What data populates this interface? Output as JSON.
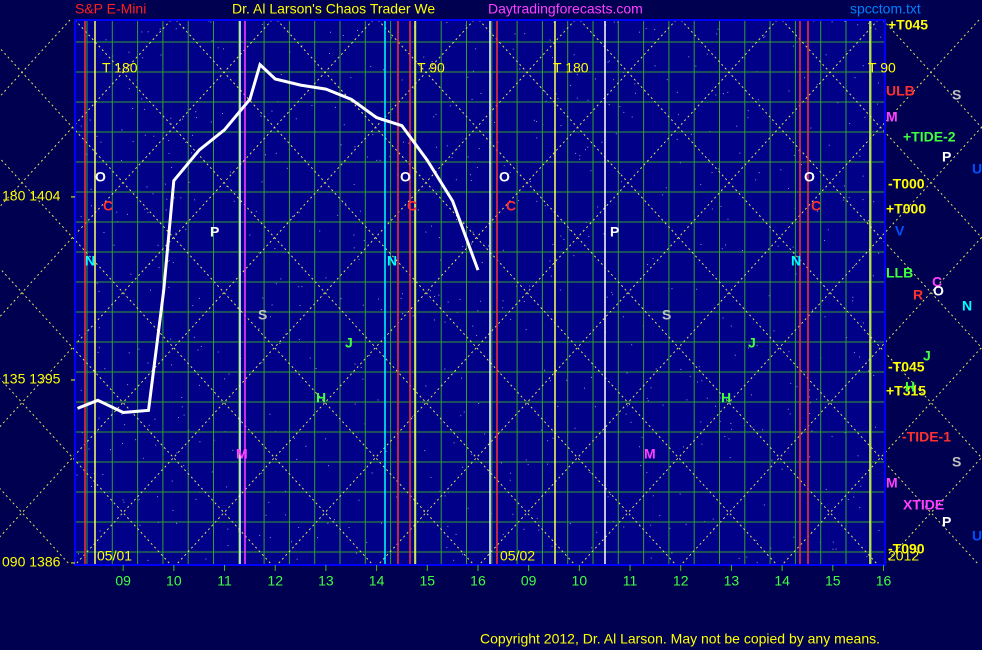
{
  "chart_data": {
    "type": "line",
    "title": "Dr. Al Larson's Chaos Trader We",
    "site": "Daytradingforecasts.com",
    "instrument": "S&P E-Mini",
    "file": "spcctom.txt",
    "copyright": "Copyright 2012, Dr. Al Larson. May not be copied by any means.",
    "year": "2012",
    "days": [
      "05/01",
      "05/02"
    ],
    "x": [
      -0.9,
      -0.5,
      0,
      0.5,
      0.8,
      1.0,
      1.5,
      2.0,
      2.5,
      2.7,
      3.0,
      3.5,
      4.0,
      4.5,
      5.0,
      5.5,
      6.0,
      6.5,
      7.0
    ],
    "values": [
      1393.6,
      1394.0,
      1393.4,
      1393.5,
      1399.4,
      1404.8,
      1406.3,
      1407.3,
      1408.8,
      1410.5,
      1409.8,
      1409.5,
      1409.3,
      1408.8,
      1407.9,
      1407.5,
      1405.8,
      1403.8,
      1400.4
    ],
    "color": "#ffffff",
    "xlim": [
      -0.95,
      15.03
    ],
    "ylim": [
      1385.9,
      1412.7
    ],
    "xticks": [
      {
        "value": 0,
        "label": "09"
      },
      {
        "value": 1,
        "label": "10"
      },
      {
        "value": 2,
        "label": "11"
      },
      {
        "value": 3,
        "label": "12"
      },
      {
        "value": 4,
        "label": "13"
      },
      {
        "value": 5,
        "label": "14"
      },
      {
        "value": 6,
        "label": "15"
      },
      {
        "value": 7,
        "label": "16"
      },
      {
        "value": 8,
        "label": "09"
      },
      {
        "value": 9,
        "label": "10"
      },
      {
        "value": 10,
        "label": "11"
      },
      {
        "value": 11,
        "label": "12"
      },
      {
        "value": 12,
        "label": "13"
      },
      {
        "value": 13,
        "label": "14"
      },
      {
        "value": 14,
        "label": "15"
      },
      {
        "value": 15,
        "label": "16"
      }
    ],
    "yticks": [
      {
        "value": 1386,
        "label": "090  1386"
      },
      {
        "value": 1395,
        "label": "135  1395"
      },
      {
        "value": 1404,
        "label": "180  1404"
      }
    ],
    "right_labels": [
      "+T045",
      "ULB",
      "M",
      "+TIDE-2",
      "-T000",
      "+T000",
      "LLB",
      "-T045",
      "+T315",
      "-TIDE-1",
      "M",
      "XTIDE",
      "-T090"
    ],
    "planet_labels": [
      "S",
      "P",
      "U",
      "V",
      "C",
      "R",
      "O",
      "N",
      "J",
      "H",
      "S",
      "P",
      "U"
    ],
    "cycle_labels": [
      "T  180",
      "T  90",
      "T  180",
      "T  90"
    ],
    "markers": [
      "O",
      "C",
      "N",
      "P",
      "S",
      "J",
      "H",
      "M",
      "O",
      "C",
      "N",
      "O",
      "C",
      "P",
      "S",
      "J",
      "H",
      "M",
      "O",
      "C",
      "N"
    ]
  }
}
